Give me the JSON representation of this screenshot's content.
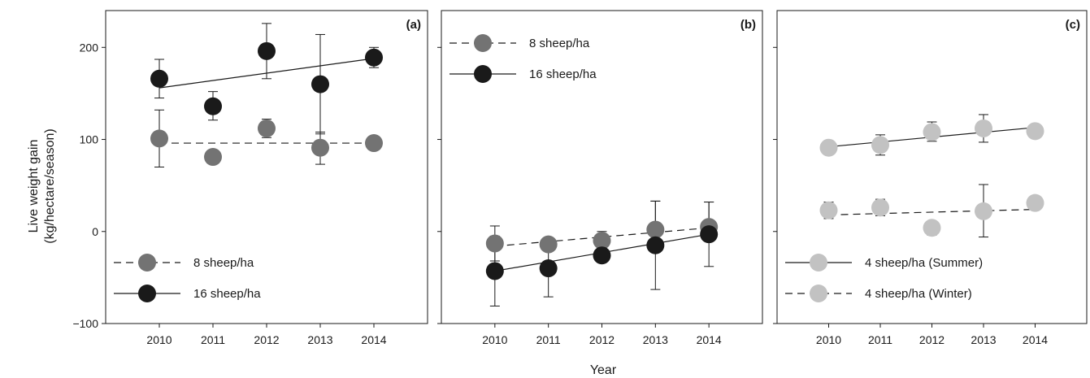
{
  "figure": {
    "ylabel_line1": "Live weight gain",
    "ylabel_line2": "(kg/hectare/season)",
    "xlabel": "Year"
  },
  "colors": {
    "dark": "#1a1a1a",
    "medium_gray": "#737373",
    "light_gray": "#c2c2c2"
  },
  "chart_data": [
    {
      "type": "scatter",
      "panel_label": "(a)",
      "x": [
        2010,
        2011,
        2012,
        2013,
        2014
      ],
      "xticks": [
        "2010",
        "2011",
        "2012",
        "2013",
        "2014"
      ],
      "xlim": [
        2009,
        2015
      ],
      "ylim": [
        -100,
        240
      ],
      "yticks": [
        -100,
        0,
        100,
        200
      ],
      "ytick_labels": [
        "−100",
        "0",
        "100",
        "200"
      ],
      "show_ytick_labels": true,
      "legend_position": "bottom-left",
      "series": [
        {
          "name": "8 sheep/ha",
          "color": "#737373",
          "line_style": "dashed",
          "values": [
            101,
            81,
            112,
            91,
            96
          ],
          "error": [
            [
              70,
              132
            ],
            null,
            [
              102,
              122
            ],
            [
              73,
              108
            ],
            null
          ],
          "trend": [
            96,
            96
          ]
        },
        {
          "name": "16 sheep/ha",
          "color": "#1a1a1a",
          "line_style": "solid",
          "values": [
            166,
            136,
            196,
            160,
            189
          ],
          "error": [
            [
              145,
              187
            ],
            [
              121,
              152
            ],
            [
              166,
              226
            ],
            [
              106,
              214
            ],
            [
              178,
              200
            ]
          ],
          "trend": [
            156,
            188
          ]
        }
      ]
    },
    {
      "type": "scatter",
      "panel_label": "(b)",
      "x": [
        2010,
        2011,
        2012,
        2013,
        2014
      ],
      "xticks": [
        "2010",
        "2011",
        "2012",
        "2013",
        "2014"
      ],
      "xlim": [
        2009,
        2015
      ],
      "ylim": [
        -100,
        240
      ],
      "yticks": [
        -100,
        0,
        100,
        200
      ],
      "show_ytick_labels": false,
      "legend_position": "top-left",
      "series": [
        {
          "name": "8 sheep/ha",
          "color": "#737373",
          "line_style": "dashed",
          "values": [
            -13,
            -14,
            -10,
            2,
            5
          ],
          "error": [
            [
              -32,
              6
            ],
            null,
            [
              -20,
              0
            ],
            [
              -10,
              33
            ],
            [
              -8,
              32
            ]
          ],
          "trend": [
            -16,
            4
          ]
        },
        {
          "name": "16 sheep/ha",
          "color": "#1a1a1a",
          "line_style": "solid",
          "values": [
            -43,
            -40,
            -26,
            -15,
            -3
          ],
          "error": [
            [
              -81,
              -5
            ],
            [
              -71,
              -9
            ],
            null,
            [
              -63,
              33
            ],
            [
              -38,
              32
            ]
          ],
          "trend": [
            -43,
            -3
          ]
        }
      ]
    },
    {
      "type": "scatter",
      "panel_label": "(c)",
      "x": [
        2010,
        2011,
        2012,
        2013,
        2014
      ],
      "xticks": [
        "2010",
        "2011",
        "2012",
        "2013",
        "2014"
      ],
      "xlim": [
        2009,
        2015
      ],
      "ylim": [
        -100,
        240
      ],
      "yticks": [
        -100,
        0,
        100,
        200
      ],
      "show_ytick_labels": false,
      "legend_position": "bottom-left",
      "series": [
        {
          "name": "4 sheep/ha (Summer)",
          "color": "#c2c2c2",
          "line_style": "solid",
          "values": [
            91,
            94,
            108,
            112,
            109
          ],
          "error": [
            null,
            [
              83,
              105
            ],
            [
              98,
              119
            ],
            [
              97,
              127
            ],
            null
          ],
          "trend": [
            92,
            113
          ]
        },
        {
          "name": "4 sheep/ha (Winter)",
          "color": "#c2c2c2",
          "line_style": "dashed",
          "values": [
            23,
            26,
            4,
            22,
            31
          ],
          "error": [
            [
              14,
              32
            ],
            [
              17,
              35
            ],
            [
              -4,
              11
            ],
            [
              -6,
              51
            ],
            null
          ],
          "trend": [
            18,
            24
          ]
        }
      ]
    }
  ]
}
